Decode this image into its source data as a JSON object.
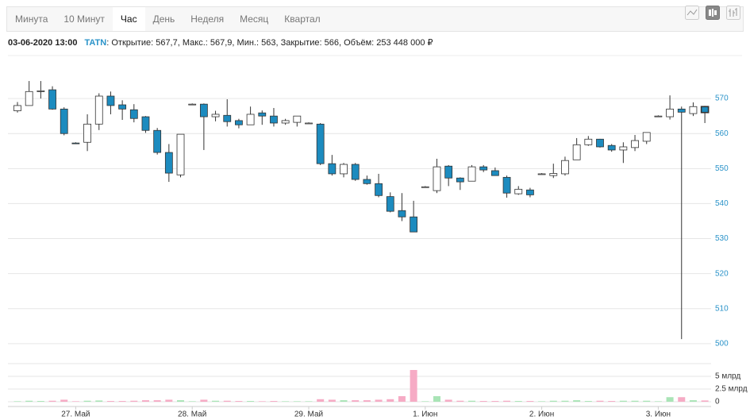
{
  "tabs": [
    "Минута",
    "10 Минут",
    "Час",
    "День",
    "Неделя",
    "Месяц",
    "Квартал"
  ],
  "active_tab": 2,
  "info": {
    "date": "03-06-2020 13:00",
    "ticker": "TATN",
    "items": [
      {
        "label": ": Открытие:",
        "value": "567,7,"
      },
      {
        "label": "Макс.:",
        "value": "567,9,"
      },
      {
        "label": "Мин.:",
        "value": "563,"
      },
      {
        "label": "Закрытие:",
        "value": "566,"
      },
      {
        "label": "Объём:",
        "value": "253 448 000 ₽"
      }
    ]
  },
  "chart_data": {
    "type": "candlestick",
    "categories": [
      null,
      null,
      null,
      null,
      null,
      "27. Май",
      null,
      null,
      null,
      null,
      null,
      null,
      null,
      null,
      null,
      "28. Май",
      null,
      null,
      null,
      null,
      null,
      null,
      null,
      null,
      null,
      "29. Май",
      null,
      null,
      null,
      null,
      null,
      null,
      null,
      null,
      null,
      "1. Июн",
      null,
      null,
      null,
      null,
      null,
      null,
      null,
      null,
      null,
      "2. Июн",
      null,
      null,
      null,
      null,
      null,
      null,
      null,
      null,
      null,
      "3. Июн",
      null,
      null,
      null,
      null
    ],
    "open": [
      566.5,
      568,
      572,
      572.5,
      567,
      557.3,
      557.5,
      562.7,
      570.7,
      568.2,
      566.8,
      564.8,
      560.9,
      554.6,
      548.2,
      568.4,
      568.4,
      564.8,
      565.2,
      563.7,
      562.5,
      565.9,
      565,
      563,
      563.2,
      563,
      562.7,
      551.4,
      548.5,
      551.2,
      546.9,
      545.7,
      542,
      538,
      536.2,
      544.8,
      543.7,
      550.7,
      547.3,
      546.4,
      550.5,
      549.4,
      547.5,
      542.8,
      543.9,
      548.5,
      548,
      548.5,
      552.5,
      556.8,
      558.4,
      556.6,
      555.3,
      556,
      557.8,
      565,
      564.8,
      567,
      565.7,
      567.7
    ],
    "high": [
      569,
      575,
      575,
      573.5,
      567.5,
      557.5,
      565.5,
      571.5,
      572,
      569.5,
      568.4,
      565,
      561.6,
      557,
      559.8,
      568.6,
      568.6,
      566.5,
      569.8,
      564.2,
      567.7,
      566.6,
      567.3,
      564.2,
      565,
      563.2,
      563,
      553.9,
      551.6,
      551.6,
      548,
      548.5,
      543.2,
      543,
      540.8,
      545,
      552.8,
      551,
      547.5,
      551,
      551,
      550.3,
      548,
      545,
      544.5,
      548.7,
      551.4,
      553.4,
      558.7,
      559.3,
      558.5,
      557,
      557.5,
      559.6,
      560.3,
      565.2,
      570.9,
      567.7,
      568.9,
      567.9
    ],
    "low": [
      566,
      568,
      570,
      566.8,
      559.5,
      557,
      555,
      561,
      565.5,
      563.9,
      563.2,
      560.2,
      554,
      546.2,
      547.5,
      568.2,
      555.3,
      563.5,
      562,
      561.5,
      562.5,
      562.5,
      562,
      562.5,
      562,
      562.8,
      551,
      548,
      547.5,
      546.5,
      545.4,
      541.8,
      537.5,
      535,
      531.9,
      544.6,
      543,
      545,
      543.9,
      546.4,
      549,
      548,
      541.7,
      542.5,
      541.8,
      548.3,
      547.3,
      548,
      552.5,
      556.5,
      556,
      554.8,
      551.6,
      555,
      557,
      564.8,
      564,
      501.3,
      565,
      563
    ],
    "close": [
      568,
      572,
      572.2,
      567,
      560,
      557.2,
      562.7,
      570.7,
      568,
      567,
      564.3,
      560.9,
      554.6,
      548.7,
      559.8,
      568.4,
      564.8,
      565.5,
      563.4,
      562.5,
      565.5,
      565,
      563,
      563.7,
      565,
      563,
      551.4,
      548.5,
      551.2,
      546.9,
      545.7,
      542.3,
      537.8,
      536.2,
      531.9,
      544.8,
      550.5,
      547.3,
      546.2,
      550.5,
      549.6,
      548,
      543,
      544.1,
      542.5,
      548.5,
      548.6,
      552.3,
      556.8,
      558.4,
      556.2,
      555.3,
      556.2,
      558,
      560.3,
      565,
      567,
      566.1,
      567.7,
      566
    ],
    "volume": [
      100000000,
      200000000,
      150000000,
      200000000,
      400000000,
      100000000,
      200000000,
      250000000,
      150000000,
      150000000,
      200000000,
      300000000,
      300000000,
      400000000,
      300000000,
      100000000,
      400000000,
      200000000,
      200000000,
      150000000,
      150000000,
      100000000,
      150000000,
      100000000,
      100000000,
      100000000,
      500000000,
      400000000,
      300000000,
      300000000,
      300000000,
      400000000,
      500000000,
      1100000000,
      6250000000,
      100000000,
      1100000000,
      400000000,
      200000000,
      200000000,
      150000000,
      150000000,
      200000000,
      150000000,
      150000000,
      100000000,
      200000000,
      200000000,
      300000000,
      150000000,
      200000000,
      150000000,
      200000000,
      200000000,
      200000000,
      100000000,
      900000000,
      900000000,
      300000000,
      253448000
    ],
    "up_color": "#ffffff",
    "down_color": "#1c8bbf",
    "volume_up_color": "#a9e4b6",
    "volume_down_color": "#f6abc5",
    "ylim": [
      496,
      580
    ],
    "yticks": [
      500,
      510,
      520,
      530,
      540,
      550,
      560,
      570
    ],
    "volume_ylim": [
      0,
      7500000000
    ],
    "volume_ticks": [
      {
        "value": 5000000000,
        "label": "5 млрд"
      },
      {
        "value": 2500000000,
        "label": "2.5 млрд"
      },
      0
    ],
    "grid": true
  }
}
